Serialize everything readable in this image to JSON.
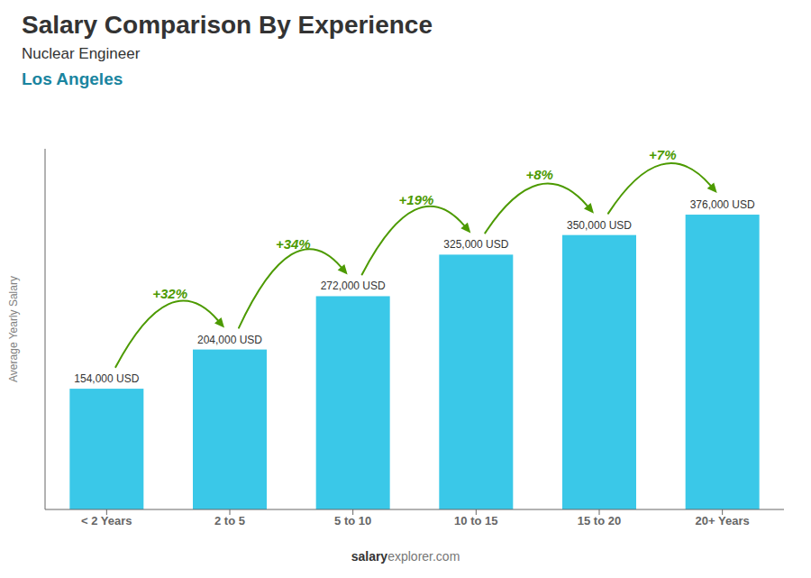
{
  "chart_data": {
    "type": "bar",
    "title": "Salary Comparison By Experience",
    "subtitle": [
      "Nuclear Engineer",
      "Los Angeles"
    ],
    "ylabel": "Average Yearly Salary",
    "categories": [
      "< 2 Years",
      "2 to 5",
      "5 to 10",
      "10 to 15",
      "15 to 20",
      "20+ Years"
    ],
    "values": [
      154000,
      204000,
      272000,
      325000,
      350000,
      376000
    ],
    "value_labels": [
      "154,000 USD",
      "204,000 USD",
      "272,000 USD",
      "325,000 USD",
      "350,000 USD",
      "376,000 USD"
    ],
    "data_labels": true,
    "color": "#3ac8e8",
    "ylim": [
      0,
      460000
    ],
    "tick_labels": "x",
    "annotations": [
      {
        "text": "+32%",
        "from": "< 2 Years",
        "to": "2 to 5"
      },
      {
        "text": "+34%",
        "from": "2 to 5",
        "to": "5 to 10"
      },
      {
        "text": "+19%",
        "from": "5 to 10",
        "to": "10 to 15"
      },
      {
        "text": "+8%",
        "from": "10 to 15",
        "to": "15 to 20"
      },
      {
        "text": "+7%",
        "from": "15 to 20",
        "to": "20+ Years"
      }
    ],
    "footer": [
      "salary",
      "explorer.com"
    ]
  }
}
